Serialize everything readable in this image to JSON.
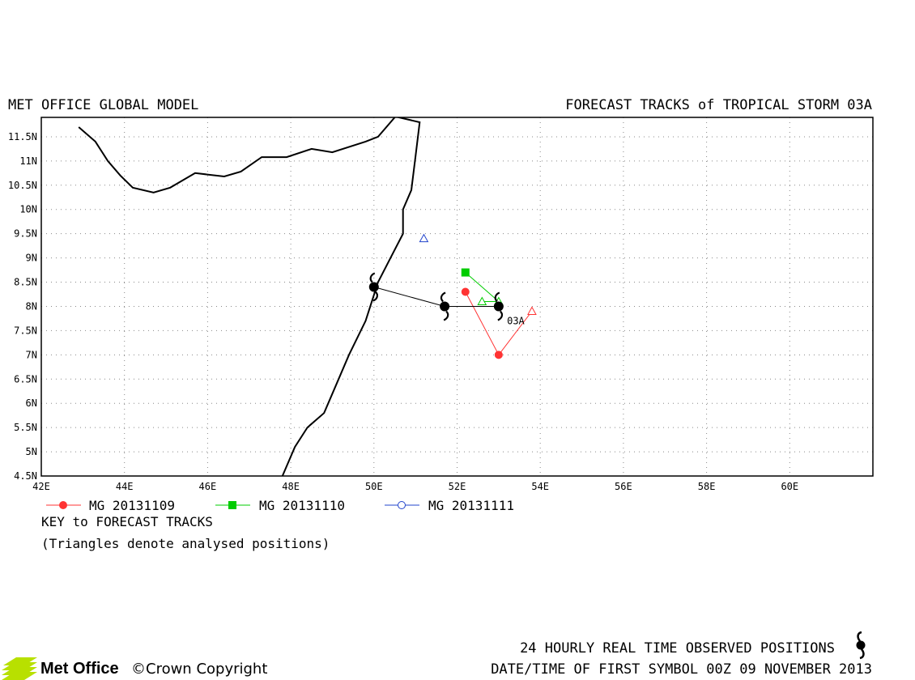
{
  "header": {
    "left_title": "MET OFFICE GLOBAL MODEL",
    "right_title": "FORECAST TRACKS of TROPICAL STORM 03A"
  },
  "map": {
    "lon_range": [
      42,
      62
    ],
    "lat_range": [
      4.5,
      11.9
    ],
    "x_ticks": [
      {
        "lon": 42,
        "label": "42E"
      },
      {
        "lon": 44,
        "label": "44E"
      },
      {
        "lon": 46,
        "label": "46E"
      },
      {
        "lon": 48,
        "label": "48E"
      },
      {
        "lon": 50,
        "label": "50E"
      },
      {
        "lon": 52,
        "label": "52E"
      },
      {
        "lon": 54,
        "label": "54E"
      },
      {
        "lon": 56,
        "label": "56E"
      },
      {
        "lon": 58,
        "label": "58E"
      },
      {
        "lon": 60,
        "label": "60E"
      }
    ],
    "y_ticks": [
      {
        "lat": 4.5,
        "label": "4.5N"
      },
      {
        "lat": 5,
        "label": "5N"
      },
      {
        "lat": 5.5,
        "label": "5.5N"
      },
      {
        "lat": 6,
        "label": "6N"
      },
      {
        "lat": 6.5,
        "label": "6.5N"
      },
      {
        "lat": 7,
        "label": "7N"
      },
      {
        "lat": 7.5,
        "label": "7.5N"
      },
      {
        "lat": 8,
        "label": "8N"
      },
      {
        "lat": 8.5,
        "label": "8.5N"
      },
      {
        "lat": 9,
        "label": "9N"
      },
      {
        "lat": 9.5,
        "label": "9.5N"
      },
      {
        "lat": 10,
        "label": "10N"
      },
      {
        "lat": 10.5,
        "label": "10.5N"
      },
      {
        "lat": 11,
        "label": "11N"
      },
      {
        "lat": 11.5,
        "label": "11.5N"
      }
    ],
    "grid": "dotted",
    "coastline_colour": "#000000",
    "coast_gulf_of_aden": [
      [
        42.9,
        11.7
      ],
      [
        43.3,
        11.4
      ],
      [
        43.6,
        11.0
      ],
      [
        43.9,
        10.7
      ],
      [
        44.2,
        10.45
      ],
      [
        44.7,
        10.35
      ],
      [
        45.1,
        10.45
      ],
      [
        45.7,
        10.75
      ],
      [
        46.4,
        10.68
      ],
      [
        46.8,
        10.78
      ],
      [
        47.3,
        11.08
      ],
      [
        47.9,
        11.08
      ],
      [
        48.5,
        11.25
      ],
      [
        49.0,
        11.18
      ],
      [
        49.8,
        11.4
      ],
      [
        50.1,
        11.5
      ],
      [
        50.5,
        11.9
      ]
    ],
    "coast_somalia_east": [
      [
        50.5,
        11.92
      ],
      [
        51.1,
        11.8
      ],
      [
        51.0,
        11.1
      ],
      [
        50.9,
        10.4
      ],
      [
        50.7,
        10.0
      ],
      [
        50.7,
        9.5
      ],
      [
        50.4,
        9.0
      ],
      [
        50.1,
        8.5
      ],
      [
        49.8,
        7.7
      ],
      [
        49.4,
        7.0
      ],
      [
        49.1,
        6.4
      ],
      [
        48.8,
        5.8
      ],
      [
        48.4,
        5.5
      ],
      [
        48.1,
        5.1
      ],
      [
        47.8,
        4.5
      ]
    ],
    "observed_track": {
      "colour": "#000000",
      "points": [
        [
          50.0,
          8.4
        ],
        [
          51.7,
          8.0
        ],
        [
          53.0,
          8.0
        ]
      ]
    },
    "storm_label": {
      "text": "03A",
      "lon": 53.2,
      "lat": 7.7
    },
    "forecast_tracks": [
      {
        "name": "MG 20131109",
        "colour": "#ff3333",
        "marker": "circle",
        "points": [
          [
            52.2,
            8.3
          ],
          [
            53.0,
            7.0
          ],
          [
            53.8,
            7.9
          ]
        ],
        "analysed": [
          [
            53.8,
            7.9
          ]
        ]
      },
      {
        "name": "MG 20131110",
        "colour": "#00cc00",
        "marker": "square",
        "points": [
          [
            52.2,
            8.7
          ],
          [
            53.0,
            8.1
          ],
          [
            52.6,
            8.1
          ]
        ],
        "analysed": [
          [
            52.6,
            8.1
          ],
          [
            53.0,
            8.1
          ]
        ]
      },
      {
        "name": "MG 20131111",
        "colour": "#2244cc",
        "marker": "circle-open",
        "points": [],
        "analysed": [
          [
            51.2,
            9.4
          ]
        ]
      }
    ]
  },
  "key": {
    "title": "KEY to FORECAST TRACKS",
    "note": "(Triangles denote analysed positions)"
  },
  "footer": {
    "observed_line": "24 HOURLY REAL TIME OBSERVED POSITIONS",
    "first_symbol_line": "DATE/TIME OF FIRST SYMBOL 00Z 09 NOVEMBER 2013",
    "logo_text": "Met Office",
    "copyright": "©Crown Copyright",
    "logo_colour": "#b8e000"
  }
}
